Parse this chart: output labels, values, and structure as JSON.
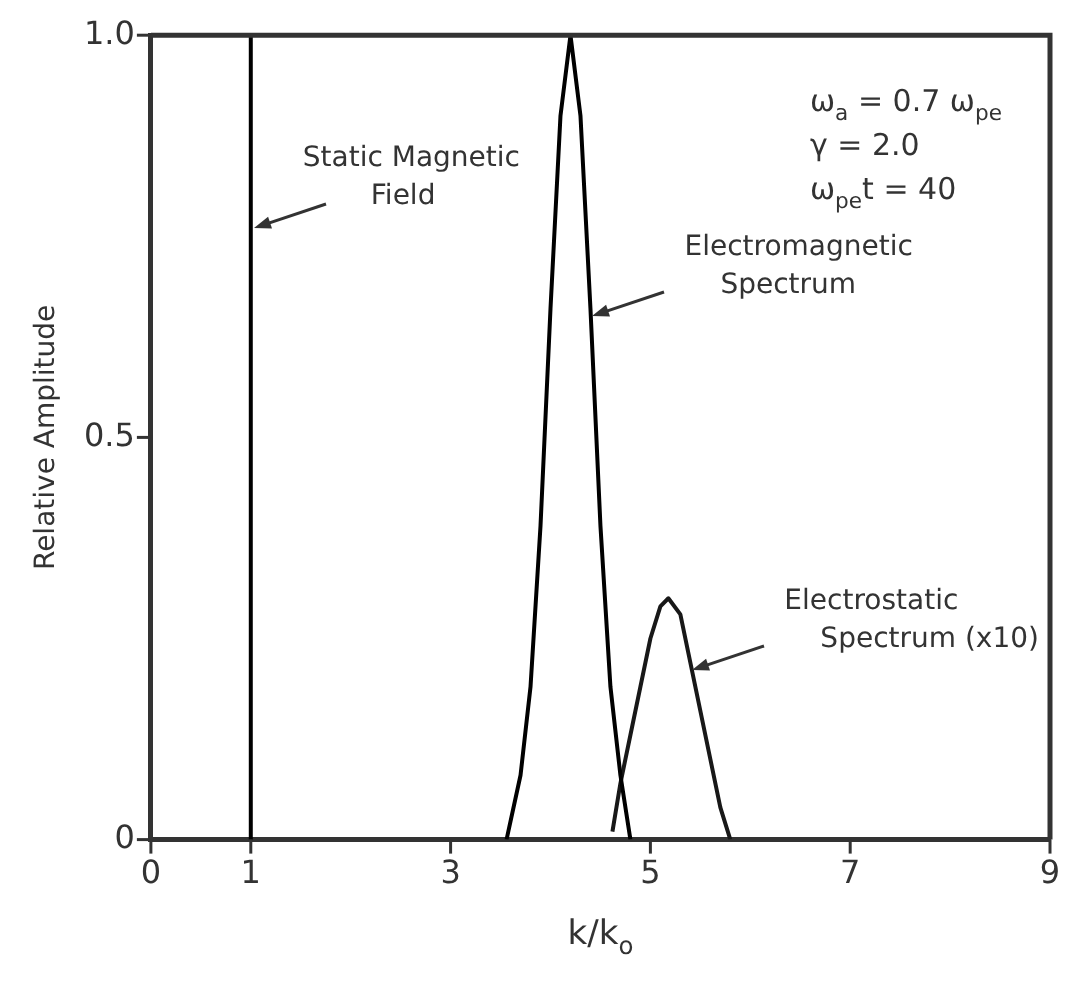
{
  "chart_data": {
    "type": "line",
    "xlabel": "k/k$_{o}$",
    "ylabel": "Relative Amplitude",
    "xlim": [
      0,
      9
    ],
    "xticks": [
      0,
      1,
      3,
      5,
      7,
      9
    ],
    "ylim": [
      0,
      1
    ],
    "yticks": [
      0,
      0.5,
      {
        "value": 1,
        "label": "1.0"
      }
    ],
    "grid": false,
    "legend": false,
    "marker": "none",
    "line_style": "solid",
    "ref_lines": [
      {
        "axis": "x",
        "value": 1,
        "label": "Static Magnetic\nField",
        "color": "#000000"
      }
    ],
    "series": [
      {
        "color": "#000000",
        "x": [
          3.56,
          3.7,
          3.8,
          3.9,
          4.0,
          4.1,
          4.2,
          4.3,
          4.4,
          4.5,
          4.6,
          4.7,
          4.8
        ],
        "values": [
          0,
          0.08,
          0.19,
          0.39,
          0.66,
          0.9,
          1.0,
          0.9,
          0.66,
          0.39,
          0.19,
          0.08,
          0
        ]
      },
      {
        "color": "#181818",
        "x": [
          4.62,
          4.7,
          4.8,
          4.9,
          5.0,
          5.1,
          5.18,
          5.3,
          5.4,
          5.5,
          5.6,
          5.7,
          5.8
        ],
        "values": [
          0.01,
          0.07,
          0.13,
          0.19,
          0.25,
          0.29,
          0.3,
          0.28,
          0.22,
          0.16,
          0.1,
          0.04,
          0
        ]
      }
    ],
    "annotations": [
      {
        "text": "Electromagnetic\nSpectrum",
        "x": 4.42,
        "y": 0.65
      },
      {
        "text": "Electrostatic\nSpectrum (x10)",
        "x": 5.42,
        "y": 0.21
      },
      "ω$_{a}$ = 0.7 ω$_{pe}$",
      "γ = 2.0",
      "ω$_{pe}$t = 40"
    ]
  }
}
